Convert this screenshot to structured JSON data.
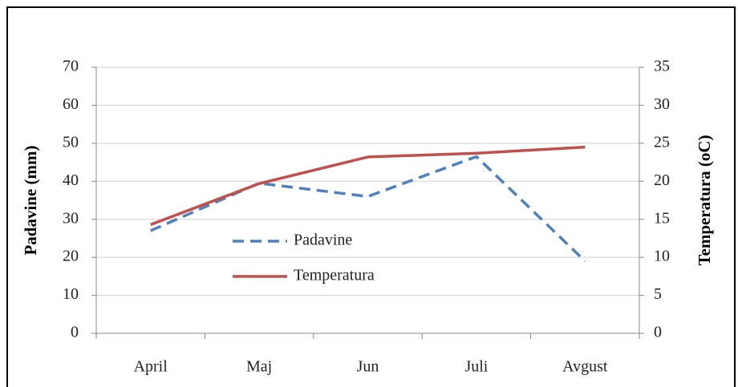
{
  "chart_data": {
    "type": "line",
    "categories": [
      "April",
      "Maj",
      "Jun",
      "Juli",
      "Avgust"
    ],
    "series": [
      {
        "name": "Padavine",
        "color": "#4f81bd",
        "dashed": true,
        "axis": "y",
        "values": [
          27,
          39.5,
          36,
          46.5,
          19
        ]
      },
      {
        "name": "Temperatura",
        "color": "#c0504d",
        "dashed": false,
        "axis": "y2",
        "values": [
          14.3,
          19.7,
          23.2,
          23.7,
          24.5
        ]
      }
    ],
    "ylabel": "Padavine (mm)",
    "y2label": "Temperatura (oC)",
    "ylim": [
      0,
      70
    ],
    "yticks": [
      0,
      10,
      20,
      30,
      40,
      50,
      60,
      70
    ],
    "y2lim": [
      0,
      35
    ],
    "y2ticks": [
      0,
      5,
      10,
      15,
      20,
      25,
      30,
      35
    ],
    "grid": true
  }
}
